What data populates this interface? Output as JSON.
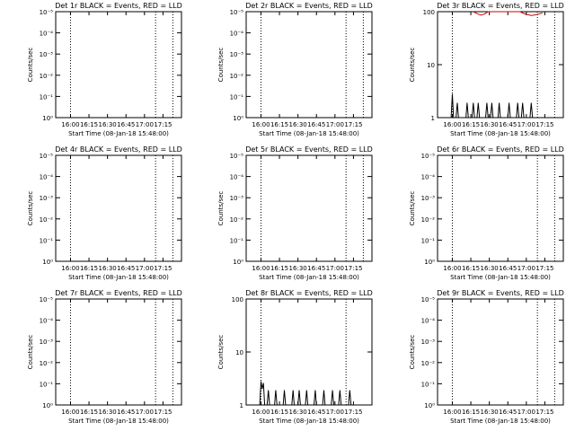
{
  "chart_data": [
    {
      "type": "line",
      "title": "Det 1r BLACK = Events, RED = LLD",
      "xlabel": "Start Time (08-Jan-18 15:48:00)",
      "ylabel": "Counts/sec",
      "yscale": "log",
      "ylim": [
        1,
        10
      ],
      "ytick_labels": [
        "10⁰",
        "10⁻¹",
        "10⁻²",
        "10⁻³",
        "10⁻⁴",
        "10⁻⁵"
      ],
      "xtick_labels": [
        "16:00",
        "16:15",
        "16:30",
        "16:45",
        "17:00",
        "17:15"
      ],
      "xlim": [
        "15:48",
        "17:30"
      ],
      "dotted_lines": [
        "16:00",
        "17:09",
        "17:23"
      ],
      "series": []
    },
    {
      "type": "line",
      "title": "Det 2r BLACK = Events, RED = LLD",
      "xlabel": "Start Time (08-Jan-18 15:48:00)",
      "ylabel": "Counts/sec",
      "yscale": "log",
      "ylim": [
        1,
        10
      ],
      "ytick_labels": [
        "10⁰",
        "10⁻¹",
        "10⁻²",
        "10⁻³",
        "10⁻⁴",
        "10⁻⁵"
      ],
      "xtick_labels": [
        "16:00",
        "16:15",
        "16:30",
        "16:45",
        "17:00",
        "17:15"
      ],
      "xlim": [
        "15:48",
        "17:30"
      ],
      "dotted_lines": [
        "16:00",
        "17:09",
        "17:23"
      ],
      "series": []
    },
    {
      "type": "line",
      "title": "Det 3r BLACK = Events, RED = LLD",
      "xlabel": "Start Time (08-Jan-18 15:48:00)",
      "ylabel": "Counts/sec",
      "yscale": "log",
      "ylim": [
        1,
        100
      ],
      "ytick_labels": [
        "1",
        "10",
        "100"
      ],
      "xtick_labels": [
        "16:00",
        "16:15",
        "16:30",
        "16:45",
        "17:00",
        "17:15"
      ],
      "xlim": [
        "15:48",
        "17:30"
      ],
      "dotted_lines": [
        "16:00",
        "17:09",
        "17:23"
      ],
      "series": [
        {
          "color": "#000000",
          "points": [
            [
              "15:59",
              1
            ],
            [
              "16:00",
              2.8
            ],
            [
              "16:01",
              1
            ],
            [
              "16:03",
              1
            ],
            [
              "16:04",
              1.9
            ],
            [
              "16:05",
              1
            ],
            [
              "16:11",
              1
            ],
            [
              "16:12",
              1.9
            ],
            [
              "16:13",
              1
            ],
            [
              "16:16",
              1
            ],
            [
              "16:17",
              1.9
            ],
            [
              "16:18",
              1
            ],
            [
              "16:20",
              1
            ],
            [
              "16:21",
              1.9
            ],
            [
              "16:22",
              1
            ],
            [
              "16:27",
              1
            ],
            [
              "16:28",
              1.9
            ],
            [
              "16:29",
              1
            ],
            [
              "16:31",
              1
            ],
            [
              "16:32",
              1.9
            ],
            [
              "16:33",
              1
            ],
            [
              "16:37",
              1
            ],
            [
              "16:38",
              1.9
            ],
            [
              "16:39",
              1
            ],
            [
              "16:45",
              1
            ],
            [
              "16:46",
              1.9
            ],
            [
              "16:47",
              1
            ],
            [
              "16:52",
              1
            ],
            [
              "16:53",
              1.9
            ],
            [
              "16:54",
              1
            ],
            [
              "16:56",
              1
            ],
            [
              "16:57",
              1.9
            ],
            [
              "16:58",
              1
            ],
            [
              "17:03",
              1
            ],
            [
              "17:04",
              1.9
            ],
            [
              "17:05",
              1
            ]
          ]
        },
        {
          "color": "#cc0000",
          "points": [
            [
              "16:17",
              100
            ],
            [
              "16:20",
              92
            ],
            [
              "16:23",
              86
            ],
            [
              "16:26",
              90
            ],
            [
              "16:29",
              100
            ],
            [
              "16:55",
              100
            ],
            [
              "16:58",
              92
            ],
            [
              "17:01",
              88
            ],
            [
              "17:04",
              85
            ],
            [
              "17:07",
              87
            ],
            [
              "17:10",
              90
            ],
            [
              "17:13",
              95
            ]
          ]
        }
      ]
    },
    {
      "type": "line",
      "title": "Det 4r BLACK = Events, RED = LLD",
      "xlabel": "Start Time (08-Jan-18 15:48:00)",
      "ylabel": "Counts/sec",
      "yscale": "log",
      "ylim": [
        1,
        10
      ],
      "ytick_labels": [
        "10⁰",
        "10⁻¹",
        "10⁻²",
        "10⁻³",
        "10⁻⁴",
        "10⁻⁵"
      ],
      "xtick_labels": [
        "16:00",
        "16:15",
        "16:30",
        "16:45",
        "17:00",
        "17:15"
      ],
      "xlim": [
        "15:48",
        "17:30"
      ],
      "dotted_lines": [
        "16:00",
        "17:09",
        "17:23"
      ],
      "series": []
    },
    {
      "type": "line",
      "title": "Det 5r BLACK = Events, RED = LLD",
      "xlabel": "Start Time (08-Jan-18 15:48:00)",
      "ylabel": "Counts/sec",
      "yscale": "log",
      "ylim": [
        1,
        10
      ],
      "ytick_labels": [
        "10⁰",
        "10⁻¹",
        "10⁻²",
        "10⁻³",
        "10⁻⁴",
        "10⁻⁵"
      ],
      "xtick_labels": [
        "16:00",
        "16:15",
        "16:30",
        "16:45",
        "17:00",
        "17:15"
      ],
      "xlim": [
        "15:48",
        "17:30"
      ],
      "dotted_lines": [
        "16:00",
        "17:09",
        "17:23"
      ],
      "series": []
    },
    {
      "type": "line",
      "title": "Det 6r BLACK = Events, RED = LLD",
      "xlabel": "Start Time (08-Jan-18 15:48:00)",
      "ylabel": "Counts/sec",
      "yscale": "log",
      "ylim": [
        1,
        10
      ],
      "ytick_labels": [
        "10⁰",
        "10⁻¹",
        "10⁻²",
        "10⁻³",
        "10⁻⁴",
        "10⁻⁵"
      ],
      "xtick_labels": [
        "16:00",
        "16:15",
        "16:30",
        "16:45",
        "17:00",
        "17:15"
      ],
      "xlim": [
        "15:48",
        "17:30"
      ],
      "dotted_lines": [
        "16:00",
        "17:09",
        "17:23"
      ],
      "series": []
    },
    {
      "type": "line",
      "title": "Det 7r BLACK = Events, RED = LLD",
      "xlabel": "Start Time (08-Jan-18 15:48:00)",
      "ylabel": "Counts/sec",
      "yscale": "log",
      "ylim": [
        1,
        10
      ],
      "ytick_labels": [
        "10⁰",
        "10⁻¹",
        "10⁻²",
        "10⁻³",
        "10⁻⁴",
        "10⁻⁵"
      ],
      "xtick_labels": [
        "16:00",
        "16:15",
        "16:30",
        "16:45",
        "17:00",
        "17:15"
      ],
      "xlim": [
        "15:48",
        "17:30"
      ],
      "dotted_lines": [
        "16:00",
        "17:09",
        "17:23"
      ],
      "series": []
    },
    {
      "type": "line",
      "title": "Det 8r BLACK = Events, RED = LLD",
      "xlabel": "Start Time (08-Jan-18 15:48:00)",
      "ylabel": "Counts/sec",
      "yscale": "log",
      "ylim": [
        1,
        100
      ],
      "ytick_labels": [
        "1",
        "10",
        "100"
      ],
      "xtick_labels": [
        "16:00",
        "16:15",
        "16:30",
        "16:45",
        "17:00",
        "17:15"
      ],
      "xlim": [
        "15:48",
        "17:30"
      ],
      "dotted_lines": [
        "16:00",
        "17:09"
      ],
      "series": [
        {
          "color": "#000000",
          "points": [
            [
              "15:59",
              1
            ],
            [
              "16:00",
              2.8
            ],
            [
              "16:01",
              2.0
            ],
            [
              "16:02",
              2.6
            ],
            [
              "16:03",
              1
            ],
            [
              "16:05",
              1
            ],
            [
              "16:06",
              1.9
            ],
            [
              "16:07",
              1
            ],
            [
              "16:11",
              1
            ],
            [
              "16:12",
              1.9
            ],
            [
              "16:13",
              1
            ],
            [
              "16:18",
              1
            ],
            [
              "16:19",
              1.9
            ],
            [
              "16:20",
              1
            ],
            [
              "16:25",
              1
            ],
            [
              "16:26",
              1.9
            ],
            [
              "16:27",
              1
            ],
            [
              "16:30",
              1
            ],
            [
              "16:31",
              1.9
            ],
            [
              "16:32",
              1
            ],
            [
              "16:36",
              1
            ],
            [
              "16:37",
              1.9
            ],
            [
              "16:38",
              1
            ],
            [
              "16:43",
              1
            ],
            [
              "16:44",
              1.9
            ],
            [
              "16:45",
              1
            ],
            [
              "16:50",
              1
            ],
            [
              "16:51",
              1.9
            ],
            [
              "16:52",
              1
            ],
            [
              "16:57",
              1
            ],
            [
              "16:58",
              1.9
            ],
            [
              "16:59",
              1
            ],
            [
              "17:03",
              1
            ],
            [
              "17:04",
              1.9
            ],
            [
              "17:05",
              1
            ],
            [
              "17:11",
              1
            ],
            [
              "17:12",
              1.9
            ],
            [
              "17:13",
              1
            ]
          ]
        }
      ]
    },
    {
      "type": "line",
      "title": "Det 9r BLACK = Events, RED = LLD",
      "xlabel": "Start Time (08-Jan-18 15:48:00)",
      "ylabel": "Counts/sec",
      "yscale": "log",
      "ylim": [
        1,
        10
      ],
      "ytick_labels": [
        "10⁰",
        "10⁻¹",
        "10⁻²",
        "10⁻³",
        "10⁻⁴",
        "10⁻⁵"
      ],
      "xtick_labels": [
        "16:00",
        "16:15",
        "16:30",
        "16:45",
        "17:00",
        "17:15"
      ],
      "xlim": [
        "15:48",
        "17:30"
      ],
      "dotted_lines": [
        "16:00",
        "17:09",
        "17:23"
      ],
      "series": []
    }
  ]
}
